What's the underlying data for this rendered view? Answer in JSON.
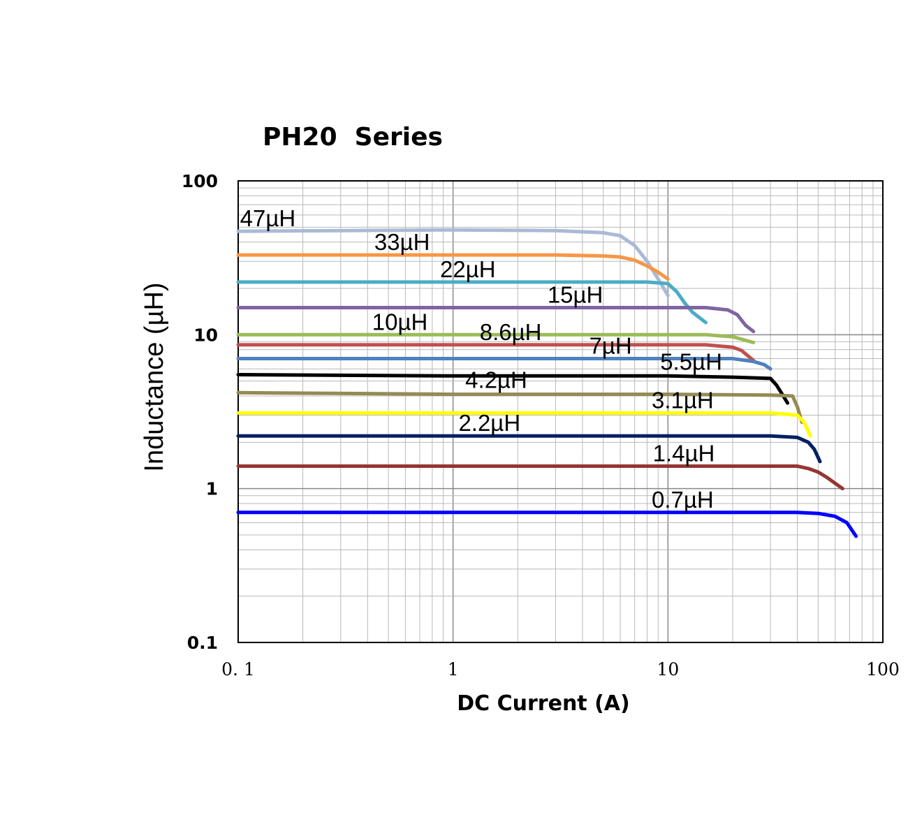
{
  "chart_data": {
    "type": "line",
    "title": "PH20  Series",
    "xlabel": "DC Current (A)",
    "ylabel": "Inductance (µH)",
    "x_scale": "log",
    "y_scale": "log",
    "xlim": [
      0.1,
      100
    ],
    "ylim": [
      0.1,
      100
    ],
    "x_ticks": [
      {
        "value": 0.1,
        "label": "0. 1"
      },
      {
        "value": 1,
        "label": "1"
      },
      {
        "value": 10,
        "label": "10"
      },
      {
        "value": 100,
        "label": "100"
      }
    ],
    "y_ticks": [
      {
        "value": 0.1,
        "label": "0.1"
      },
      {
        "value": 1,
        "label": "1"
      },
      {
        "value": 10,
        "label": "10"
      },
      {
        "value": 100,
        "label": "100"
      }
    ],
    "grid": true,
    "series": [
      {
        "label": "47µH",
        "color": "#a9bad6",
        "label_at": [
          0.102,
          47
        ],
        "points": [
          [
            0.1,
            47
          ],
          [
            0.3,
            47.5
          ],
          [
            1,
            48
          ],
          [
            3,
            47.5
          ],
          [
            5,
            46
          ],
          [
            6,
            44
          ],
          [
            7,
            38
          ],
          [
            8,
            30
          ],
          [
            9,
            23
          ],
          [
            10,
            18
          ]
        ]
      },
      {
        "label": "33µH",
        "color": "#f79646",
        "label_at": [
          0.43,
          33
        ],
        "points": [
          [
            0.1,
            33
          ],
          [
            1,
            33
          ],
          [
            3,
            33
          ],
          [
            5,
            32.5
          ],
          [
            6,
            32
          ],
          [
            7,
            30.5
          ],
          [
            8,
            28
          ],
          [
            9,
            25.5
          ],
          [
            10,
            23
          ]
        ]
      },
      {
        "label": "22µH",
        "color": "#4bacc6",
        "label_at": [
          0.87,
          22
        ],
        "points": [
          [
            0.1,
            22
          ],
          [
            1,
            22
          ],
          [
            5,
            22
          ],
          [
            8,
            22
          ],
          [
            10,
            21.5
          ],
          [
            11,
            19
          ],
          [
            12,
            16
          ],
          [
            13,
            14
          ],
          [
            15,
            12
          ]
        ]
      },
      {
        "label": "15µH",
        "color": "#8064a2",
        "label_at": [
          2.75,
          15
        ],
        "points": [
          [
            0.1,
            15
          ],
          [
            1,
            15
          ],
          [
            10,
            15
          ],
          [
            15,
            15
          ],
          [
            19,
            14.5
          ],
          [
            21,
            13.5
          ],
          [
            23,
            11.5
          ],
          [
            25,
            10.5
          ]
        ]
      },
      {
        "label": "10µH",
        "color": "#9bbb59",
        "label_at": [
          0.42,
          10
        ],
        "points": [
          [
            0.1,
            10
          ],
          [
            1,
            10
          ],
          [
            10,
            10
          ],
          [
            15,
            10
          ],
          [
            20,
            9.7
          ],
          [
            25,
            8.9
          ]
        ]
      },
      {
        "label": "8.6µH",
        "color": "#c0504d",
        "label_at": [
          1.33,
          8.6
        ],
        "points": [
          [
            0.1,
            8.6
          ],
          [
            1,
            8.6
          ],
          [
            10,
            8.6
          ],
          [
            15,
            8.6
          ],
          [
            20,
            8.3
          ],
          [
            22,
            7.9
          ],
          [
            25,
            6.8
          ]
        ]
      },
      {
        "label": "7µH",
        "color": "#4f81bd",
        "label_at": [
          4.3,
          7
        ],
        "points": [
          [
            0.1,
            7
          ],
          [
            1,
            7
          ],
          [
            10,
            7
          ],
          [
            20,
            7
          ],
          [
            25,
            6.7
          ],
          [
            28,
            6.4
          ],
          [
            30,
            6
          ]
        ]
      },
      {
        "label": "5.5µH",
        "color": "#000000",
        "label_at": [
          9.2,
          5.5
        ],
        "points": [
          [
            0.1,
            5.5
          ],
          [
            1,
            5.4
          ],
          [
            10,
            5.4
          ],
          [
            20,
            5.3
          ],
          [
            30,
            5.2
          ],
          [
            32,
            4.7
          ],
          [
            34,
            4.1
          ],
          [
            36,
            3.6
          ]
        ]
      },
      {
        "label": "4.2µH",
        "color": "#948a54",
        "label_at": [
          1.14,
          4.2
        ],
        "points": [
          [
            0.1,
            4.2
          ],
          [
            1,
            4.1
          ],
          [
            10,
            4.1
          ],
          [
            30,
            4.05
          ],
          [
            38,
            4
          ],
          [
            40,
            3.4
          ],
          [
            42,
            2.7
          ]
        ]
      },
      {
        "label": "3.1µH",
        "color": "#ffff00",
        "label_at": [
          8.4,
          3.1
        ],
        "points": [
          [
            0.1,
            3.1
          ],
          [
            1,
            3.1
          ],
          [
            10,
            3.1
          ],
          [
            30,
            3.1
          ],
          [
            40,
            3.0
          ],
          [
            43,
            2.7
          ],
          [
            46,
            2.2
          ]
        ]
      },
      {
        "label": "2.2µH",
        "color": "#002060",
        "label_at": [
          1.06,
          2.2
        ],
        "points": [
          [
            0.1,
            2.2
          ],
          [
            1,
            2.2
          ],
          [
            10,
            2.2
          ],
          [
            30,
            2.2
          ],
          [
            40,
            2.15
          ],
          [
            45,
            2.0
          ],
          [
            48,
            1.8
          ],
          [
            51,
            1.5
          ]
        ]
      },
      {
        "label": "1.4µH",
        "color": "#943634",
        "label_at": [
          8.5,
          1.4
        ],
        "points": [
          [
            0.1,
            1.4
          ],
          [
            1,
            1.4
          ],
          [
            10,
            1.4
          ],
          [
            30,
            1.4
          ],
          [
            40,
            1.4
          ],
          [
            45,
            1.35
          ],
          [
            50,
            1.28
          ],
          [
            55,
            1.18
          ],
          [
            65,
            1.0
          ]
        ]
      },
      {
        "label": "0.7µH",
        "color": "#0000ff",
        "label_at": [
          8.4,
          0.7
        ],
        "points": [
          [
            0.1,
            0.7
          ],
          [
            1,
            0.7
          ],
          [
            10,
            0.7
          ],
          [
            30,
            0.7
          ],
          [
            40,
            0.7
          ],
          [
            50,
            0.69
          ],
          [
            60,
            0.66
          ],
          [
            68,
            0.6
          ],
          [
            75,
            0.49
          ]
        ]
      }
    ]
  }
}
